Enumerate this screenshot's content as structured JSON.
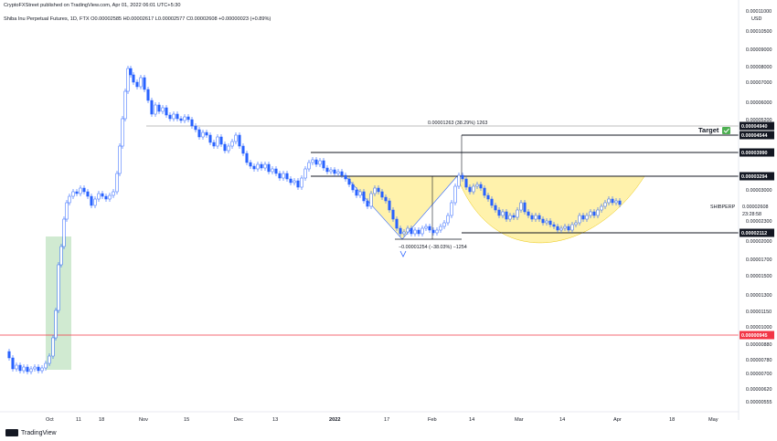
{
  "header": {
    "published": "CryptoFXStreet published on TradingView.com, Apr 01, 2022 06:01 UTC+5:30",
    "symbol_line": "Shiba Inu Perpetual Futures, 1D, FTX  O0.00002585  H0.00002617  L0.00002577  C0.00002608  +0.00000023 (+0.89%)"
  },
  "footer": {
    "logo_text": "TradingView"
  },
  "colors": {
    "up": "#26a69a",
    "down": "#2962ff",
    "up_candle": "#ffffff",
    "candle_stroke": "#2962ff",
    "cup_fill": "#fff2a8",
    "box_fill": "#c8e6c9",
    "red_line": "#f23645",
    "target_green": "#4caf50"
  },
  "chart_data": {
    "type": "candlestick",
    "title": "",
    "y_axis": {
      "scale": "log",
      "unit_label": "USD",
      "ylim": [
        5.5e-06,
        1.15e-05
      ],
      "tick_labels": [
        "0.00010500",
        "0.00009000",
        "0.00008000",
        "0.00007000",
        "0.00006000",
        "0.00005200",
        "0.00003000",
        "0.00002300",
        "0.00002000",
        "0.00001700",
        "0.00001500",
        "0.00001300",
        "0.00001150",
        "0.00001000",
        "0.00000880",
        "0.00000780",
        "0.00000700",
        "0.00000620",
        "0.00000555"
      ],
      "tick_values": [
        0.000105,
        9e-05,
        8e-05,
        7e-05,
        6e-05,
        5.2e-05,
        3e-05,
        2.3e-05,
        2e-05,
        1.7e-05,
        1.5e-05,
        1.3e-05,
        1.15e-05,
        1e-05,
        8.8e-06,
        7.8e-06,
        7e-06,
        6.2e-06,
        5.55e-06
      ],
      "level_labels": [
        {
          "text": "0.00004940",
          "value": 4.94e-05,
          "style": "dark"
        },
        {
          "text": "0.00004544",
          "value": 4.544e-05,
          "style": "dark"
        },
        {
          "text": "0.00003990",
          "value": 3.99e-05,
          "style": "dark"
        },
        {
          "text": "0.00003294",
          "value": 3.294e-05,
          "style": "dark"
        },
        {
          "text": "0.00002608",
          "value": 2.608e-05,
          "style": "plain",
          "prefix": "SHIBPERP",
          "sub": "23:28:58"
        },
        {
          "text": "0.00002112",
          "value": 2.112e-05,
          "style": "dark"
        },
        {
          "text": "0.00000945",
          "value": 9.45e-06,
          "style": "red"
        }
      ],
      "target_label": "Target",
      "top_partial_label": "0.00011000"
    },
    "x_axis": {
      "tick_labels": [
        "Oct",
        "11",
        "18",
        "Nov",
        "15",
        "Dec",
        "13",
        "2022",
        "17",
        "Feb",
        "14",
        "Mar",
        "14",
        "Apr",
        "18",
        "May"
      ],
      "bold_labels": [
        "2022"
      ]
    },
    "annotations": {
      "measure_up": "0.00001263 (38.29%) 1263",
      "measure_down": "−0.00001254 (−38.03%) −1254"
    },
    "levels": {
      "target": 4.94e-05,
      "resistance_1": 4.544e-05,
      "resistance_2": 3.99e-05,
      "neckline": 3.294e-05,
      "support": 2.112e-05,
      "red_line": 9.45e-06
    }
  }
}
